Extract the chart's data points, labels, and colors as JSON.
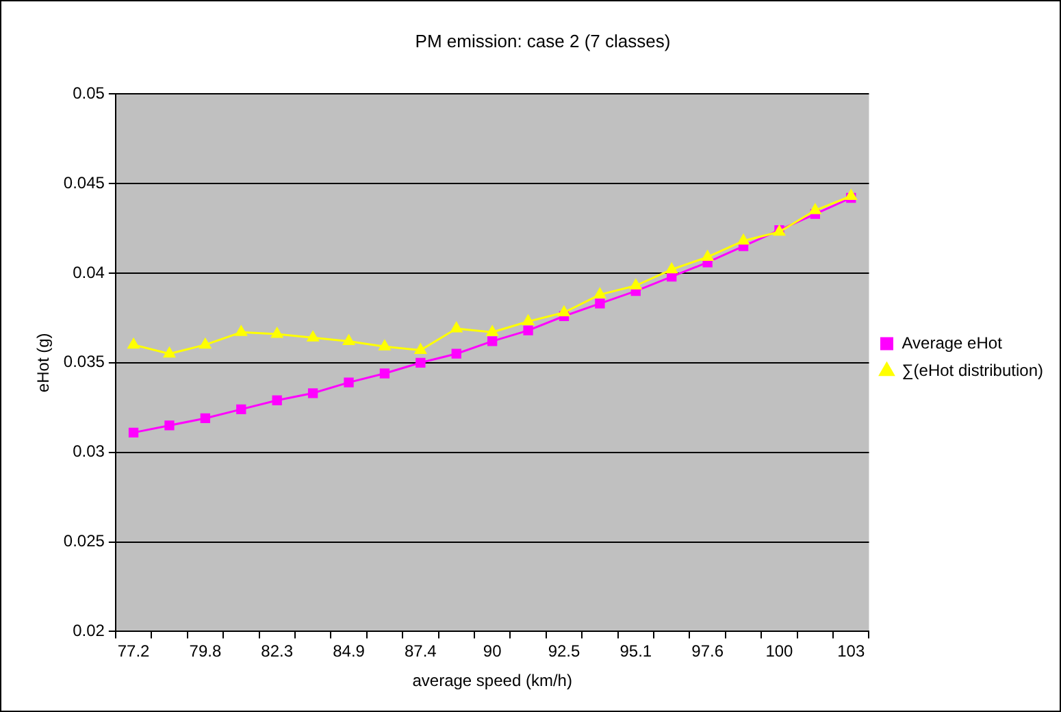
{
  "chart_data": {
    "type": "line",
    "title": "PM emission: case 2 (7 classes)",
    "xlabel": "average speed (km/h)",
    "ylabel": "eHot (g)",
    "categories": [
      "77.2",
      null,
      "79.8",
      null,
      "82.3",
      null,
      "84.9",
      null,
      "87.4",
      null,
      "90",
      null,
      "92.5",
      null,
      "95.1",
      null,
      "97.6",
      null,
      "100",
      null,
      "103"
    ],
    "series": [
      {
        "name": "Average eHot",
        "color": "#ff00ff",
        "marker": "square",
        "values": [
          0.0311,
          0.0315,
          0.0319,
          0.0324,
          0.0329,
          0.0333,
          0.0339,
          0.0344,
          0.035,
          0.0355,
          0.0362,
          0.0368,
          0.0376,
          0.0383,
          0.039,
          0.0398,
          0.0406,
          0.0415,
          0.0424,
          0.0433,
          0.0442
        ]
      },
      {
        "name": "∑(eHot distribution)",
        "color": "#ffff00",
        "marker": "triangle",
        "values": [
          0.036,
          0.0355,
          0.036,
          0.0367,
          0.0366,
          0.0364,
          0.0362,
          0.0359,
          0.0357,
          0.0369,
          0.0367,
          0.0373,
          0.0378,
          0.0388,
          0.0393,
          0.0402,
          0.0409,
          0.0418,
          0.0423,
          0.0435,
          0.0443
        ]
      }
    ],
    "ylim": [
      0.02,
      0.05
    ],
    "yticks": [
      0.02,
      0.025,
      0.03,
      0.035,
      0.04,
      0.045,
      0.05
    ],
    "grid": "y",
    "legend": "right"
  }
}
